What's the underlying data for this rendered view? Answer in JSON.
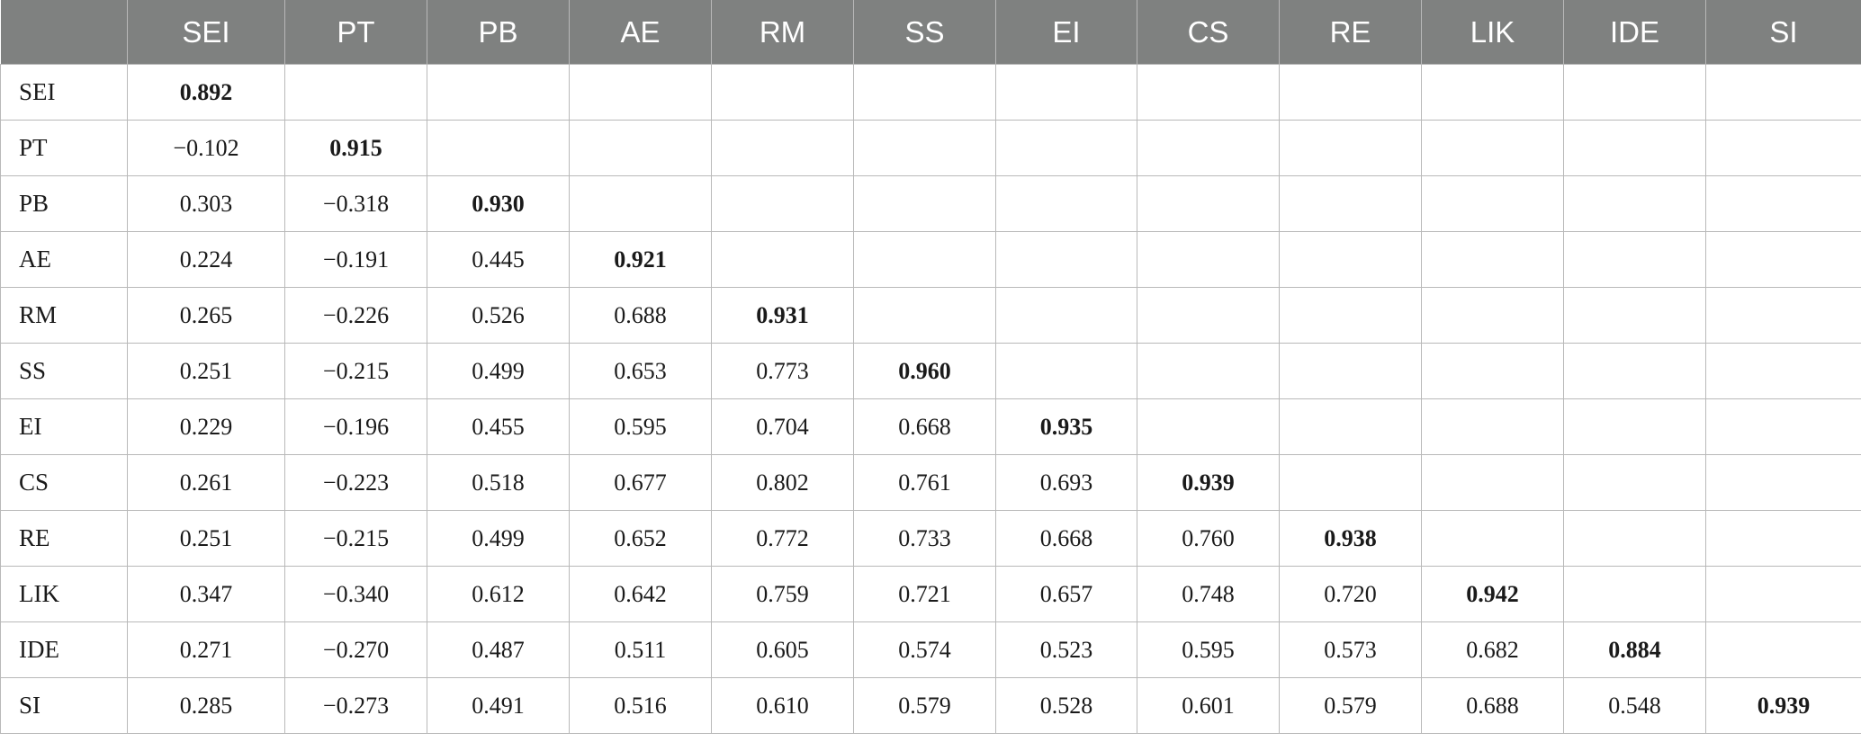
{
  "table": {
    "corner": "",
    "columns": [
      "SEI",
      "PT",
      "PB",
      "AE",
      "RM",
      "SS",
      "EI",
      "CS",
      "RE",
      "LIK",
      "IDE",
      "SI"
    ],
    "rows": [
      {
        "label": "SEI",
        "values": [
          "0.892"
        ]
      },
      {
        "label": "PT",
        "values": [
          "−0.102",
          "0.915"
        ]
      },
      {
        "label": "PB",
        "values": [
          "0.303",
          "−0.318",
          "0.930"
        ]
      },
      {
        "label": "AE",
        "values": [
          "0.224",
          "−0.191",
          "0.445",
          "0.921"
        ]
      },
      {
        "label": "RM",
        "values": [
          "0.265",
          "−0.226",
          "0.526",
          "0.688",
          "0.931"
        ]
      },
      {
        "label": "SS",
        "values": [
          "0.251",
          "−0.215",
          "0.499",
          "0.653",
          "0.773",
          "0.960"
        ]
      },
      {
        "label": "EI",
        "values": [
          "0.229",
          "−0.196",
          "0.455",
          "0.595",
          "0.704",
          "0.668",
          "0.935"
        ]
      },
      {
        "label": "CS",
        "values": [
          "0.261",
          "−0.223",
          "0.518",
          "0.677",
          "0.802",
          "0.761",
          "0.693",
          "0.939"
        ]
      },
      {
        "label": "RE",
        "values": [
          "0.251",
          "−0.215",
          "0.499",
          "0.652",
          "0.772",
          "0.733",
          "0.668",
          "0.760",
          "0.938"
        ]
      },
      {
        "label": "LIK",
        "values": [
          "0.347",
          "−0.340",
          "0.612",
          "0.642",
          "0.759",
          "0.721",
          "0.657",
          "0.748",
          "0.720",
          "0.942"
        ]
      },
      {
        "label": "IDE",
        "values": [
          "0.271",
          "−0.270",
          "0.487",
          "0.511",
          "0.605",
          "0.574",
          "0.523",
          "0.595",
          "0.573",
          "0.682",
          "0.884"
        ]
      },
      {
        "label": "SI",
        "values": [
          "0.285",
          "−0.273",
          "0.491",
          "0.516",
          "0.610",
          "0.579",
          "0.528",
          "0.601",
          "0.579",
          "0.688",
          "0.548",
          "0.939"
        ]
      }
    ]
  },
  "colors": {
    "header_bg": "#7f8180",
    "header_text": "#ffffff",
    "grid": "#b9b9b9"
  }
}
